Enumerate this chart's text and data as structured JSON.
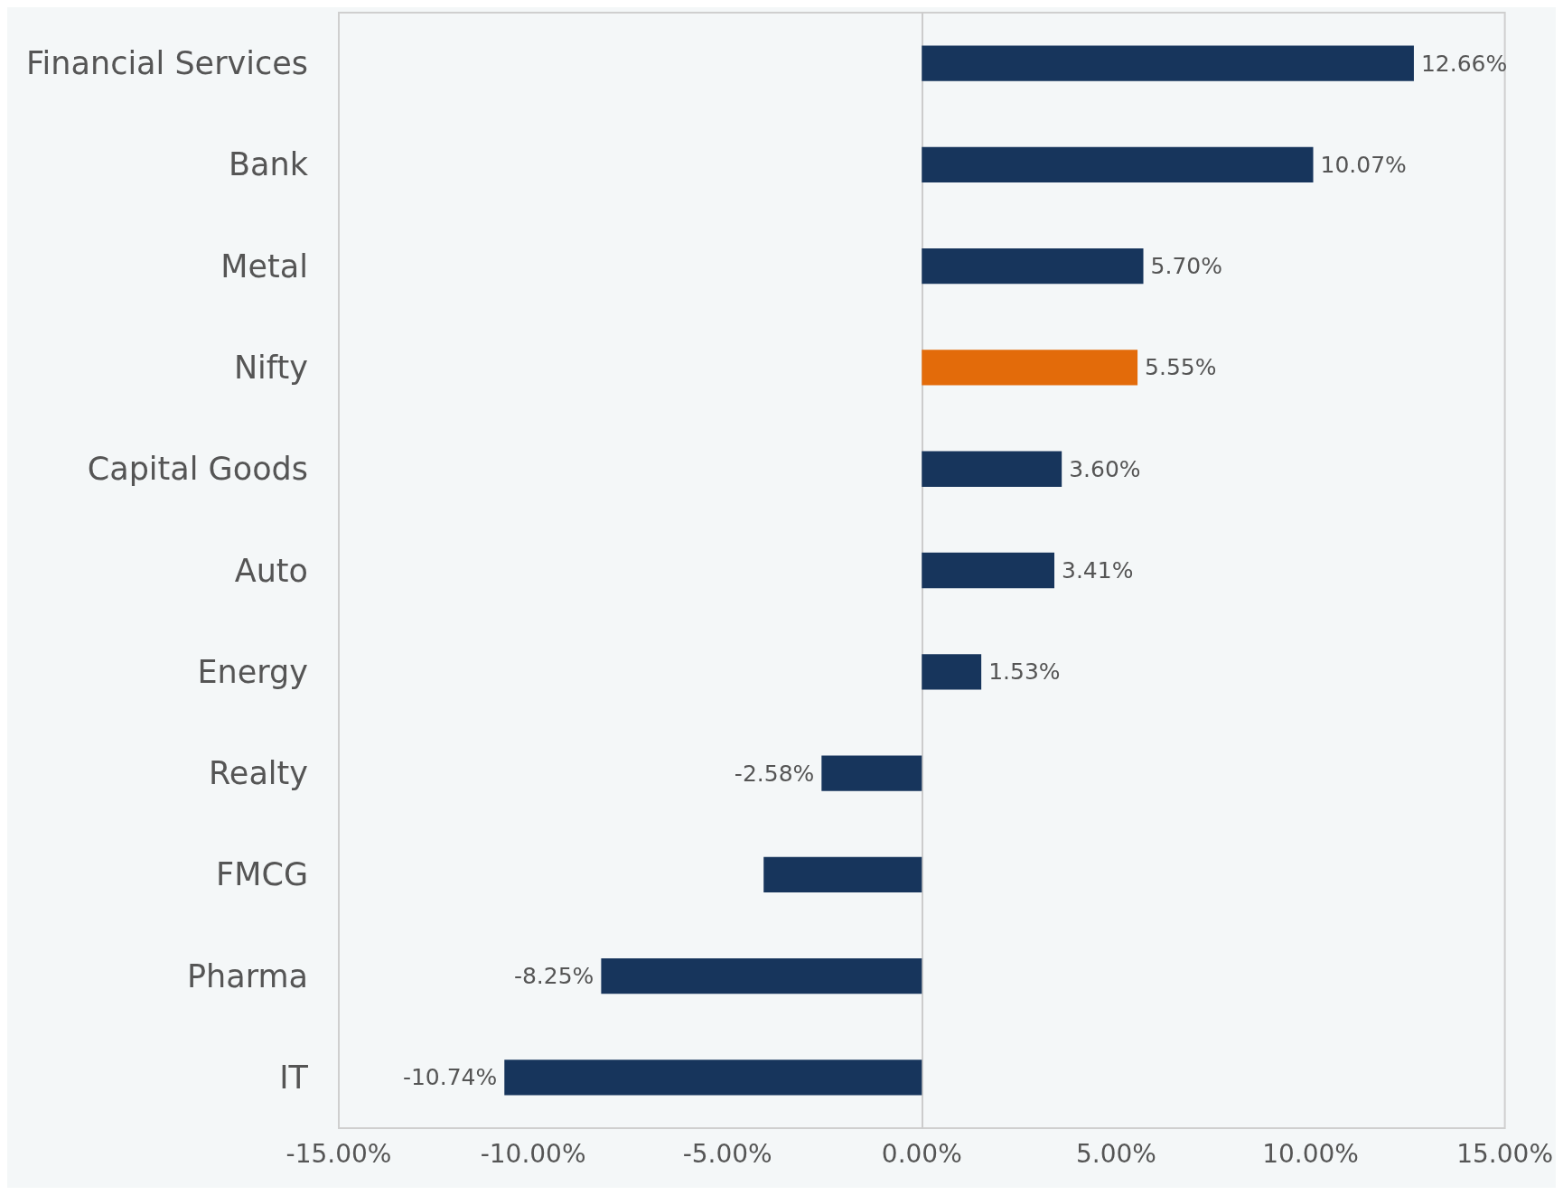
{
  "chart_data": {
    "type": "bar",
    "orientation": "horizontal",
    "categories": [
      "Financial Services",
      "Bank",
      "Metal",
      "Nifty",
      "Capital Goods",
      "Auto",
      "Energy",
      "Realty",
      "FMCG",
      "Pharma",
      "IT"
    ],
    "values": [
      12.66,
      10.07,
      5.7,
      5.55,
      3.6,
      3.41,
      1.53,
      -2.58,
      -4.07,
      -8.25,
      -10.74
    ],
    "colors": [
      "#17355c",
      "#17355c",
      "#17355c",
      "#e36b0a",
      "#17355c",
      "#17355c",
      "#17355c",
      "#17355c",
      "#17355c",
      "#17355c",
      "#17355c"
    ],
    "value_labels": [
      "12.66%",
      "10.07%",
      "5.70%",
      "5.55%",
      "3.60%",
      "3.41%",
      "1.53%",
      "-2.58%",
      null,
      "-8.25%",
      "-10.74%"
    ],
    "xlim": [
      -15,
      15
    ],
    "xticks": [
      {
        "value": -15,
        "label": "-15.00%"
      },
      {
        "value": -10,
        "label": "-10.00%"
      },
      {
        "value": -5,
        "label": "-5.00%"
      },
      {
        "value": 0,
        "label": "0.00%"
      },
      {
        "value": 5,
        "label": "5.00%"
      },
      {
        "value": 10,
        "label": "10.00%"
      },
      {
        "value": 15,
        "label": "15.00%"
      }
    ],
    "data_labels": false
  }
}
